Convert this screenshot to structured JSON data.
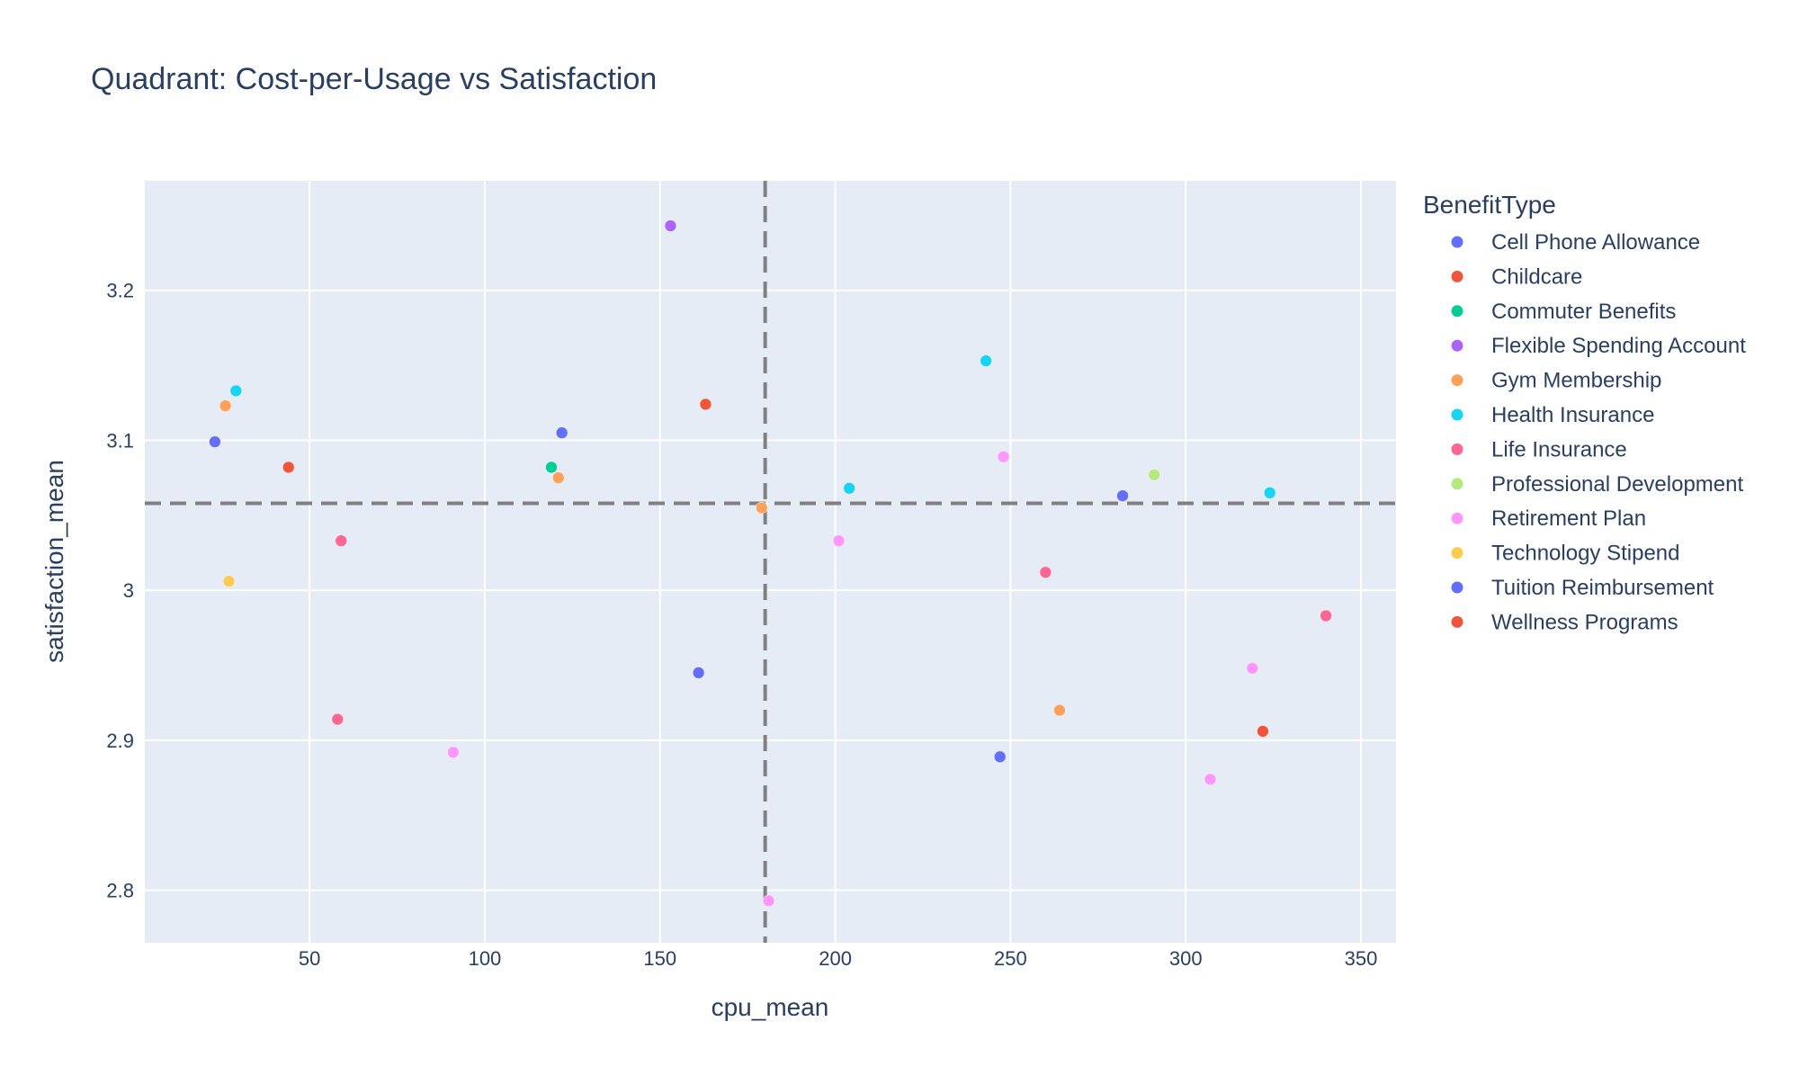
{
  "chart_data": {
    "type": "scatter",
    "title": "Quadrant: Cost-per-Usage vs Satisfaction",
    "xlabel": "cpu_mean",
    "ylabel": "satisfaction_mean",
    "xlim": [
      3,
      360
    ],
    "ylim": [
      2.765,
      3.273
    ],
    "x_ticks": [
      50,
      100,
      150,
      200,
      250,
      300,
      350
    ],
    "y_ticks": [
      2.8,
      2.9,
      3,
      3.1,
      3.2
    ],
    "y_tick_labels": [
      "2.8",
      "2.9",
      "3",
      "3.1",
      "3.2"
    ],
    "grid": true,
    "reference_lines": {
      "x": 180,
      "y": 3.058
    },
    "legend": {
      "title": "BenefitType",
      "placement": "right"
    },
    "series": [
      {
        "name": "Cell Phone Allowance",
        "color": "#636efa",
        "points": [
          [
            23,
            3.099
          ],
          [
            122,
            3.105
          ],
          [
            161,
            2.945
          ],
          [
            247,
            2.889
          ],
          [
            282,
            3.063
          ]
        ]
      },
      {
        "name": "Childcare",
        "color": "#EF553B",
        "points": [
          [
            163,
            3.124
          ],
          [
            322,
            2.906
          ]
        ]
      },
      {
        "name": "Commuter Benefits",
        "color": "#00cc96",
        "points": [
          [
            119,
            3.082
          ]
        ]
      },
      {
        "name": "Flexible Spending Account",
        "color": "#ab63fa",
        "points": [
          [
            153,
            3.243
          ]
        ]
      },
      {
        "name": "Gym Membership",
        "color": "#FFA15A",
        "points": [
          [
            26,
            3.123
          ],
          [
            121,
            3.075
          ],
          [
            179,
            3.055
          ],
          [
            264,
            2.92
          ]
        ]
      },
      {
        "name": "Health Insurance",
        "color": "#19d3f3",
        "points": [
          [
            29,
            3.133
          ],
          [
            204,
            3.068
          ],
          [
            243,
            3.153
          ],
          [
            324,
            3.065
          ]
        ]
      },
      {
        "name": "Life Insurance",
        "color": "#FF6692",
        "points": [
          [
            58,
            2.914
          ],
          [
            59,
            3.033
          ],
          [
            260,
            3.012
          ],
          [
            340,
            2.983
          ]
        ]
      },
      {
        "name": "Professional Development",
        "color": "#B6E880",
        "points": [
          [
            291,
            3.077
          ]
        ]
      },
      {
        "name": "Retirement Plan",
        "color": "#FF97FF",
        "points": [
          [
            91,
            2.892
          ],
          [
            181,
            2.793
          ],
          [
            201,
            3.033
          ],
          [
            248,
            3.089
          ],
          [
            307,
            2.874
          ],
          [
            319,
            2.948
          ]
        ]
      },
      {
        "name": "Technology Stipend",
        "color": "#FECB52",
        "points": [
          [
            27,
            3.006
          ]
        ]
      },
      {
        "name": "Tuition Reimbursement",
        "color": "#636efa",
        "points": []
      },
      {
        "name": "Wellness Programs",
        "color": "#EF553B",
        "points": [
          [
            44,
            3.082
          ]
        ]
      }
    ]
  }
}
